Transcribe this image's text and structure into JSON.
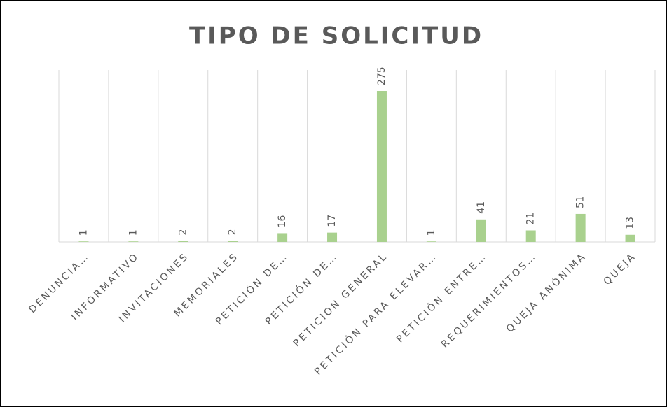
{
  "chart_data": {
    "type": "bar",
    "title": "TIPO DE SOLICITUD",
    "categories": [
      "DENUNCIA…",
      "INFORMATIVO",
      "INVITACIONES",
      "MEMORIALES",
      "PETICIÓN DE…",
      "PETICIÓN DE…",
      "PETICION GENERAL",
      "PETICIÓN PARA ELEVAR…",
      "PETICIÓN ENTRE…",
      "REQUERIMIENTOS…",
      "QUEJA ANÓNIMA",
      "QUEJA"
    ],
    "values": [
      1,
      1,
      2,
      2,
      16,
      17,
      275,
      1,
      41,
      21,
      51,
      13
    ],
    "color": "#a9d18e",
    "grid": true
  }
}
